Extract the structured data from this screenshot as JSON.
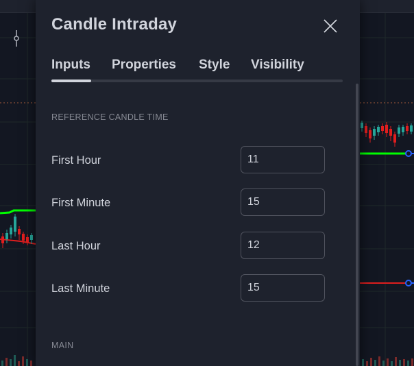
{
  "dialog": {
    "title": "Candle Intraday",
    "tabs": [
      {
        "label": "Inputs",
        "active": true
      },
      {
        "label": "Properties",
        "active": false
      },
      {
        "label": "Style",
        "active": false
      },
      {
        "label": "Visibility",
        "active": false
      }
    ],
    "sections": {
      "reference": "REFERENCE CANDLE TIME",
      "main": "MAIN"
    },
    "fields": [
      {
        "label": "First Hour",
        "value": "11"
      },
      {
        "label": "First Minute",
        "value": "15"
      },
      {
        "label": "Last Hour",
        "value": "12"
      },
      {
        "label": "Last Minute",
        "value": "15"
      }
    ]
  },
  "colors": {
    "chart_background": "#131722",
    "dialog_background": "#1e222d",
    "text_primary": "#d1d4dc",
    "text_secondary": "#868993",
    "green_line": "#00ff00",
    "red_line": "#e01e1e",
    "dotted_level": "#a35a3a",
    "marker": "#2962ff"
  },
  "icons": {
    "close": "close-icon",
    "drawing_tool": "crosshair-tool-icon"
  }
}
